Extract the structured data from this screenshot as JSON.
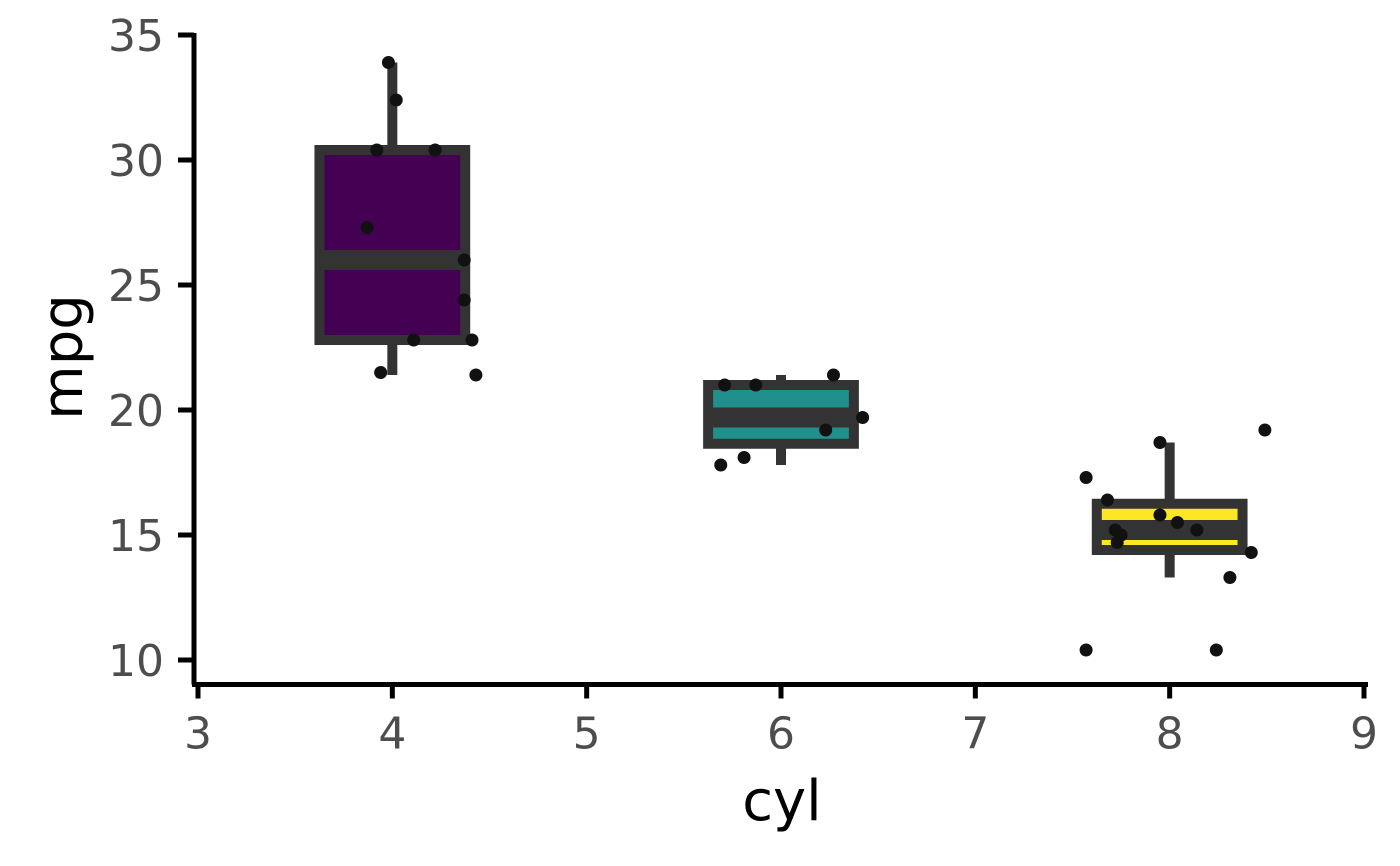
{
  "chart_data": {
    "type": "boxplot",
    "xlabel": "cyl",
    "ylabel": "mpg",
    "xlim": [
      3,
      9
    ],
    "ylim": [
      9.5,
      35
    ],
    "x_ticks": [
      3,
      4,
      5,
      6,
      7,
      8,
      9
    ],
    "y_ticks": [
      10,
      15,
      20,
      25,
      30,
      35
    ],
    "grid": false,
    "legend": "none",
    "box_edge_color": "#333333",
    "point_color": "#111111",
    "groups": [
      {
        "cyl": 4,
        "fill": "#440154",
        "min": 21.4,
        "q1": 22.8,
        "median": 26.0,
        "q3": 30.4,
        "max": 33.9,
        "points": [
          {
            "x": 3.98,
            "y": 33.9
          },
          {
            "x": 4.02,
            "y": 32.4
          },
          {
            "x": 3.92,
            "y": 30.4
          },
          {
            "x": 4.22,
            "y": 30.4
          },
          {
            "x": 3.87,
            "y": 27.3
          },
          {
            "x": 4.37,
            "y": 26.0
          },
          {
            "x": 4.37,
            "y": 24.4
          },
          {
            "x": 4.41,
            "y": 22.8
          },
          {
            "x": 4.11,
            "y": 22.8
          },
          {
            "x": 3.94,
            "y": 21.5
          },
          {
            "x": 4.43,
            "y": 21.4
          }
        ]
      },
      {
        "cyl": 6,
        "fill": "#21908C",
        "min": 17.8,
        "q1": 18.65,
        "median": 19.7,
        "q3": 21.0,
        "max": 21.4,
        "points": [
          {
            "x": 5.71,
            "y": 21.0
          },
          {
            "x": 5.87,
            "y": 21.0
          },
          {
            "x": 6.27,
            "y": 21.4
          },
          {
            "x": 6.42,
            "y": 19.7
          },
          {
            "x": 6.23,
            "y": 19.2
          },
          {
            "x": 5.81,
            "y": 18.1
          },
          {
            "x": 5.69,
            "y": 17.8
          }
        ]
      },
      {
        "cyl": 8,
        "fill": "#FDE725",
        "min": 13.3,
        "q1": 14.4,
        "median": 15.2,
        "q3": 16.25,
        "max": 18.7,
        "points": [
          {
            "x": 8.49,
            "y": 19.2
          },
          {
            "x": 7.95,
            "y": 18.7
          },
          {
            "x": 7.57,
            "y": 17.3
          },
          {
            "x": 7.68,
            "y": 16.4
          },
          {
            "x": 7.95,
            "y": 15.8
          },
          {
            "x": 8.04,
            "y": 15.5
          },
          {
            "x": 7.72,
            "y": 15.2
          },
          {
            "x": 8.14,
            "y": 15.2
          },
          {
            "x": 7.75,
            "y": 15.0
          },
          {
            "x": 7.73,
            "y": 14.7
          },
          {
            "x": 8.42,
            "y": 14.3
          },
          {
            "x": 8.31,
            "y": 13.3
          },
          {
            "x": 8.24,
            "y": 10.4
          },
          {
            "x": 7.57,
            "y": 10.4
          }
        ]
      }
    ]
  }
}
